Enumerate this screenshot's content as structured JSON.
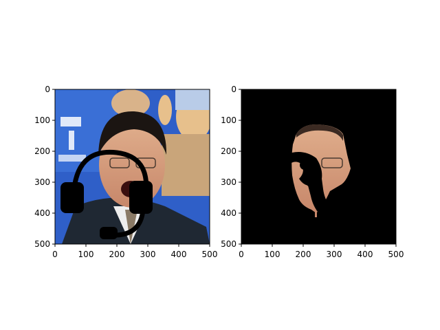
{
  "chart_data": [
    {
      "type": "image",
      "panel": "left",
      "content": "photo of a man shouting with a headset overlay drawn in black",
      "xlim": [
        0,
        500
      ],
      "ylim": [
        500,
        0
      ],
      "x_ticks": [
        0,
        100,
        200,
        300,
        400,
        500
      ],
      "y_ticks": [
        0,
        100,
        200,
        300,
        400,
        500
      ],
      "x_tick_labels": [
        "0",
        "100",
        "200",
        "300",
        "400",
        "500"
      ],
      "y_tick_labels": [
        "0",
        "100",
        "200",
        "300",
        "400",
        "500"
      ],
      "grid": false
    },
    {
      "type": "image",
      "panel": "right",
      "content": "segmented face mask on black background with occluding headset region removed",
      "xlim": [
        0,
        500
      ],
      "ylim": [
        500,
        0
      ],
      "x_ticks": [
        0,
        100,
        200,
        300,
        400,
        500
      ],
      "y_ticks": [
        0,
        100,
        200,
        300,
        400,
        500
      ],
      "x_tick_labels": [
        "0",
        "100",
        "200",
        "300",
        "400",
        "500"
      ],
      "y_tick_labels": [
        "0",
        "100",
        "200",
        "300",
        "400",
        "500"
      ],
      "grid": false
    }
  ],
  "colors": {
    "background": "#ffffff",
    "axis": "#000000",
    "mask_background": "#000000",
    "photo_bg_blue": "#2f5fc8",
    "skin": "#d49a78",
    "suit": "#1f2833"
  }
}
